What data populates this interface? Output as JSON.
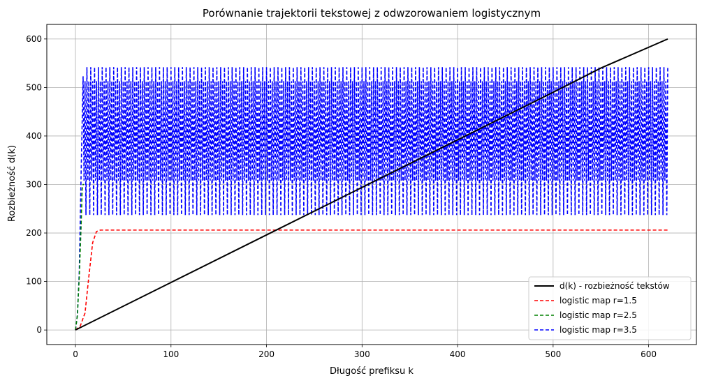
{
  "chart_data": {
    "type": "line",
    "title": "Porównanie trajektorii tekstowej z odwzorowaniem logistycznym",
    "xlabel": "Długość prefiksu k",
    "ylabel": "Rozbieżność d(k)",
    "xlim": [
      -30,
      650
    ],
    "ylim": [
      -30,
      630
    ],
    "xticks": [
      0,
      100,
      200,
      300,
      400,
      500,
      600
    ],
    "yticks": [
      0,
      100,
      200,
      300,
      400,
      500,
      600
    ],
    "grid": true,
    "legend_position": "lower-right",
    "series": [
      {
        "name": "d(k) - rozbieżność tekstów",
        "color": "#000000",
        "style": "solid",
        "description": "roughly linear growth",
        "points": [
          [
            0,
            0
          ],
          [
            100,
            98
          ],
          [
            200,
            196
          ],
          [
            300,
            294
          ],
          [
            400,
            392
          ],
          [
            500,
            490
          ],
          [
            550,
            540
          ],
          [
            620,
            600
          ]
        ]
      },
      {
        "name": "logistic map r=1.5",
        "color": "#ff0000",
        "style": "dashed",
        "points": [
          [
            0,
            0
          ],
          [
            5,
            8
          ],
          [
            10,
            35
          ],
          [
            14,
            110
          ],
          [
            18,
            180
          ],
          [
            22,
            203
          ],
          [
            26,
            206
          ],
          [
            620,
            206
          ]
        ]
      },
      {
        "name": "logistic map r=2.5",
        "color": "#008000",
        "style": "dashed",
        "points": [
          [
            0,
            0
          ],
          [
            2,
            30
          ],
          [
            4,
            110
          ],
          [
            6,
            220
          ],
          [
            7,
            290
          ],
          [
            8,
            300
          ],
          [
            9,
            300
          ]
        ]
      },
      {
        "name": "logistic map r=3.5",
        "color": "#0000ff",
        "style": "dashed",
        "period_values": [
          308,
          513,
          237,
          542
        ],
        "x_range": [
          0,
          620
        ],
        "initial": [
          [
            0,
            0
          ],
          [
            2,
            30
          ],
          [
            4,
            120
          ],
          [
            6,
            330
          ],
          [
            8,
            523
          ]
        ]
      }
    ]
  }
}
